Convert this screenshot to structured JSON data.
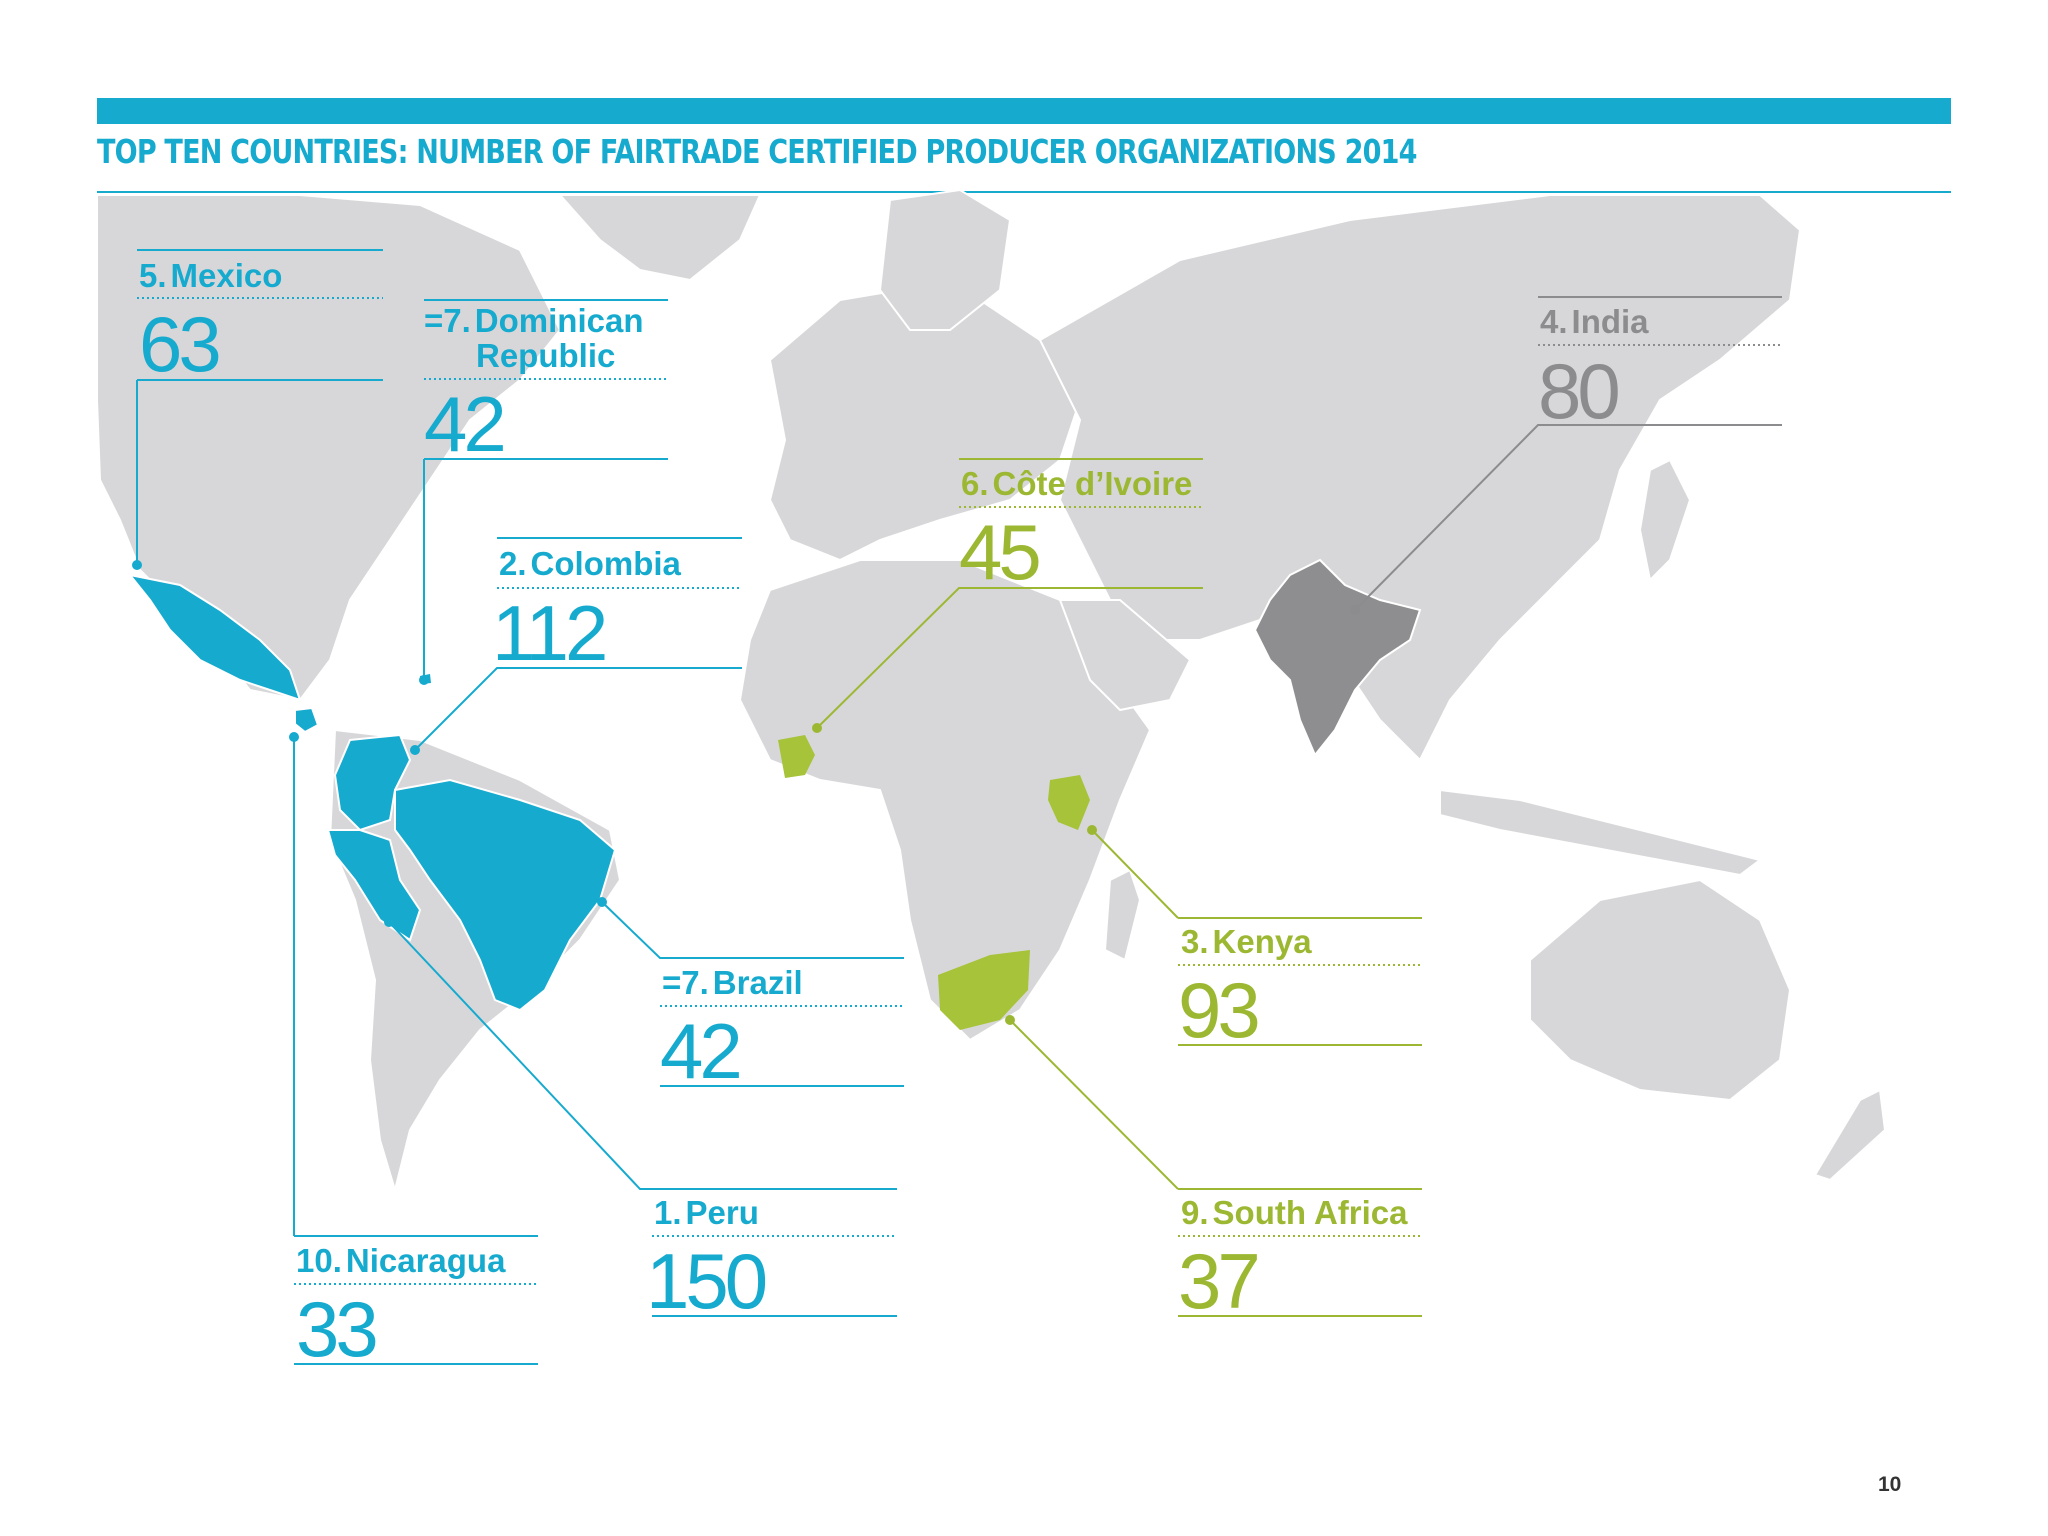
{
  "title": "TOP TEN COUNTRIES: NUMBER OF FAIRTRADE CERTIFIED PRODUCER ORGANIZATIONS 2014",
  "page_number": "10",
  "colors": {
    "accent_blue": "#16AACF",
    "accent_green": "#A6C339",
    "india_grey": "#8E8D8F",
    "land_grey": "#D7D7D9"
  },
  "countries": [
    {
      "id": "mexico",
      "rank": "5.",
      "name": "Mexico",
      "value": "63",
      "color": "blue"
    },
    {
      "id": "dominican",
      "rank": "=7.",
      "name": "Dominican",
      "name2": "Republic",
      "value": "42",
      "color": "blue"
    },
    {
      "id": "colombia",
      "rank": "2.",
      "name": "Colombia",
      "value": "112",
      "color": "blue"
    },
    {
      "id": "brazil",
      "rank": "=7.",
      "name": "Brazil",
      "value": "42",
      "color": "blue"
    },
    {
      "id": "peru",
      "rank": "1.",
      "name": "Peru",
      "value": "150",
      "color": "blue"
    },
    {
      "id": "nicaragua",
      "rank": "10.",
      "name": "Nicaragua",
      "value": "33",
      "color": "blue"
    },
    {
      "id": "cote",
      "rank": "6.",
      "name": "Côte d’Ivoire",
      "value": "45",
      "color": "green"
    },
    {
      "id": "kenya",
      "rank": "3.",
      "name": "Kenya",
      "value": "93",
      "color": "green"
    },
    {
      "id": "southafrica",
      "rank": "9.",
      "name": "South Africa",
      "value": "37",
      "color": "green"
    },
    {
      "id": "india",
      "rank": "4.",
      "name": "India",
      "value": "80",
      "color": "grey"
    }
  ]
}
